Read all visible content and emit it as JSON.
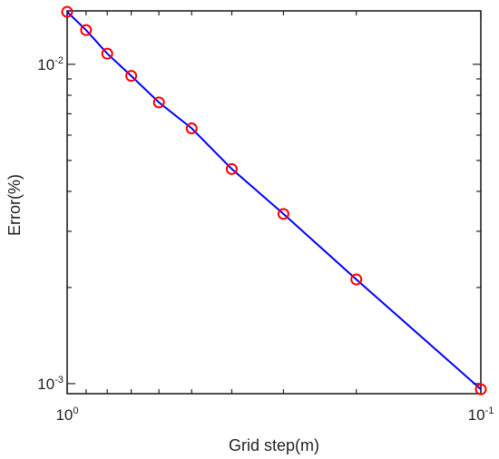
{
  "chart_data": {
    "type": "line",
    "title": "",
    "xlabel": "Grid step(m)",
    "ylabel": "Error(%)",
    "x_scale": "log",
    "y_scale": "log",
    "x_reversed": true,
    "xlim": [
      1.0,
      0.1
    ],
    "ylim": [
      0.00093,
      0.0147
    ],
    "x_ticks": [
      {
        "base": "10",
        "exp": "0",
        "value": 1.0
      },
      {
        "base": "10",
        "exp": "-1",
        "value": 0.1
      }
    ],
    "y_ticks": [
      {
        "base": "10",
        "exp": "-2",
        "value": 0.01
      },
      {
        "base": "10",
        "exp": "-3",
        "value": 0.001
      }
    ],
    "grid": false,
    "series": [
      {
        "line_color": "#0000ff",
        "marker": "circle",
        "marker_color": "#ff0000",
        "x": [
          1.0,
          0.9,
          0.8,
          0.7,
          0.6,
          0.5,
          0.4,
          0.3,
          0.2,
          0.1
        ],
        "y": [
          0.0146,
          0.0128,
          0.0108,
          0.0092,
          0.0076,
          0.0063,
          0.0047,
          0.0034,
          0.00212,
          0.00096
        ]
      }
    ]
  }
}
